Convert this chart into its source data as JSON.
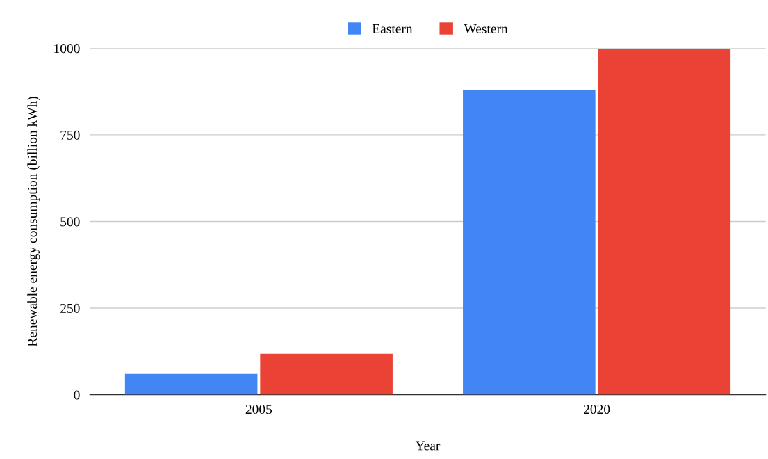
{
  "chart_data": {
    "type": "bar",
    "xlabel": "Year",
    "ylabel": "Renewable energy consumption (billion kWh)",
    "categories": [
      "2005",
      "2020"
    ],
    "series": [
      {
        "name": "Eastern",
        "color": "#4285f4",
        "values": [
          60,
          880
        ]
      },
      {
        "name": "Western",
        "color": "#ea4335",
        "values": [
          118,
          998
        ]
      }
    ],
    "ylim": [
      0,
      1000
    ],
    "yticks": [
      0,
      250,
      500,
      750,
      1000
    ],
    "grid": "y",
    "legend": "top"
  }
}
